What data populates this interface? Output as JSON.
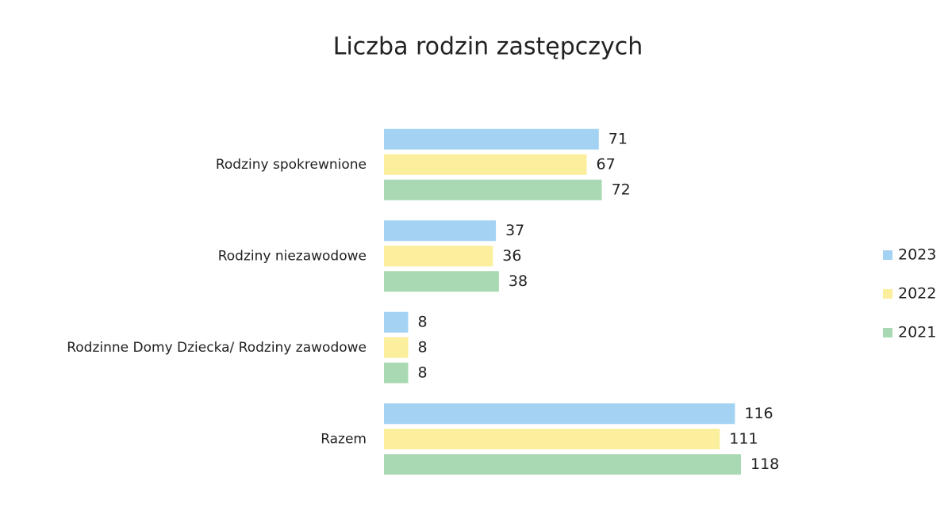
{
  "chart_data": {
    "type": "bar",
    "orientation": "horizontal",
    "title": "Liczba rodzin zastępczych",
    "categories": [
      "Rodziny spokrewnione",
      "Rodziny niezawodowe",
      "Rodzinne Domy Dziecka/ Rodziny zawodowe",
      "Razem"
    ],
    "series": [
      {
        "name": "2023",
        "color": "#a3d2f2",
        "values": [
          71,
          37,
          8,
          116
        ]
      },
      {
        "name": "2022",
        "color": "#fbee9c",
        "values": [
          67,
          36,
          8,
          111
        ]
      },
      {
        "name": "2021",
        "color": "#a9d9b2",
        "values": [
          72,
          38,
          8,
          118
        ]
      }
    ],
    "legend": "right"
  }
}
